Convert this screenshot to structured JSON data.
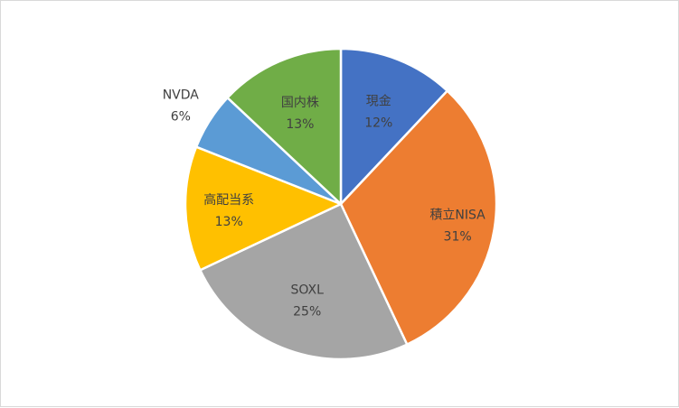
{
  "chart_data": {
    "type": "pie",
    "title": "",
    "slices": [
      {
        "label": "現金",
        "pct_label": "12%",
        "value": 12,
        "color": "#4472C4"
      },
      {
        "label": "積立NISA",
        "pct_label": "31%",
        "value": 31,
        "color": "#ED7D31"
      },
      {
        "label": "SOXL",
        "pct_label": "25%",
        "value": 25,
        "color": "#A5A5A5"
      },
      {
        "label": "高配当系",
        "pct_label": "13%",
        "value": 13,
        "color": "#FFC000"
      },
      {
        "label": "NVDA",
        "pct_label": "6%",
        "value": 6,
        "color": "#5B9BD5"
      },
      {
        "label": "国内株",
        "pct_label": "13%",
        "value": 13,
        "color": "#70AD47"
      }
    ],
    "start_angle_deg": 0,
    "direction": "clockwise",
    "legend": "none",
    "data_labels": "category and percentage"
  }
}
